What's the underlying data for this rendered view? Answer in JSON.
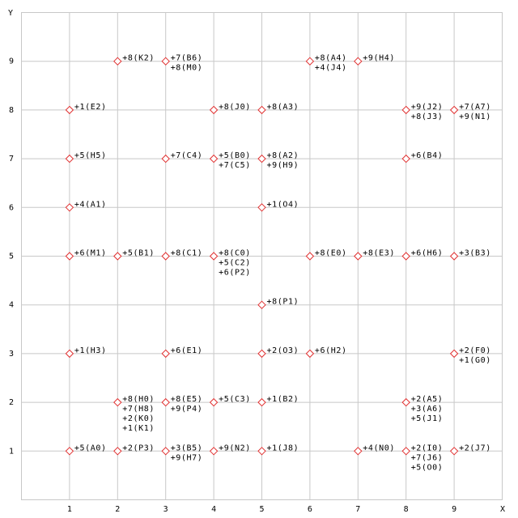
{
  "chart_data": {
    "type": "scatter",
    "xlabel": "X",
    "ylabel": "Y",
    "xlim": [
      0,
      10
    ],
    "ylim": [
      0,
      10
    ],
    "xticks": [
      1,
      2,
      3,
      4,
      5,
      6,
      7,
      8,
      9
    ],
    "yticks": [
      1,
      2,
      3,
      4,
      5,
      6,
      7,
      8,
      9
    ],
    "grid": true,
    "color": "#e03030",
    "x": [
      2,
      3,
      6,
      7,
      1,
      4,
      5,
      8,
      9,
      1,
      3,
      4,
      5,
      8,
      1,
      5,
      1,
      2,
      3,
      4,
      6,
      7,
      8,
      9,
      5,
      1,
      3,
      5,
      6,
      9,
      2,
      3,
      4,
      5,
      8,
      1,
      2,
      3,
      4,
      5,
      7,
      8,
      9
    ],
    "values": [
      9,
      9,
      9,
      9,
      8,
      8,
      8,
      8,
      8,
      7,
      7,
      7,
      7,
      7,
      6,
      6,
      5,
      5,
      5,
      5,
      5,
      5,
      5,
      5,
      4,
      3,
      3,
      3,
      3,
      3,
      2,
      2,
      2,
      2,
      2,
      1,
      1,
      1,
      1,
      1,
      1,
      1,
      1
    ],
    "point_labels": [
      [
        "+8(K2)"
      ],
      [
        "+7(B6)",
        "+8(M0)"
      ],
      [
        "+8(A4)",
        "+4(J4)"
      ],
      [
        "+9(H4)"
      ],
      [
        "+1(E2)"
      ],
      [
        "+8(J0)"
      ],
      [
        "+8(A3)"
      ],
      [
        "+9(J2)",
        "+8(J3)"
      ],
      [
        "+7(A7)",
        "+9(N1)"
      ],
      [
        "+5(H5)"
      ],
      [
        "+7(C4)"
      ],
      [
        "+5(B0)",
        "+7(C5)"
      ],
      [
        "+8(A2)",
        "+9(H9)"
      ],
      [
        "+6(B4)"
      ],
      [
        "+4(A1)"
      ],
      [
        "+1(O4)"
      ],
      [
        "+6(M1)"
      ],
      [
        "+5(B1)"
      ],
      [
        "+8(C1)"
      ],
      [
        "+8(C0)",
        "+5(C2)",
        "+6(P2)"
      ],
      [
        "+8(E0)"
      ],
      [
        "+8(E3)"
      ],
      [
        "+6(H6)"
      ],
      [
        "+3(B3)"
      ],
      [
        "+8(P1)"
      ],
      [
        "+1(H3)"
      ],
      [
        "+6(E1)"
      ],
      [
        "+2(O3)"
      ],
      [
        "+6(H2)"
      ],
      [
        "+2(F0)",
        "+1(G0)"
      ],
      [
        "+8(H0)",
        "+7(H8)",
        "+2(K0)",
        "+1(K1)"
      ],
      [
        "+8(E5)",
        "+9(P4)"
      ],
      [
        "+5(C3)"
      ],
      [
        "+1(B2)"
      ],
      [
        "+2(A5)",
        "+3(A6)",
        "+5(J1)"
      ],
      [
        "+5(A0)"
      ],
      [
        "+2(P3)"
      ],
      [
        "+3(B5)",
        "+9(H7)"
      ],
      [
        "+9(N2)"
      ],
      [
        "+1(J8)"
      ],
      [
        "+4(N0)"
      ],
      [
        "+2(I0)",
        "+7(J6)",
        "+5(O0)"
      ],
      [
        "+2(J7)"
      ]
    ]
  }
}
